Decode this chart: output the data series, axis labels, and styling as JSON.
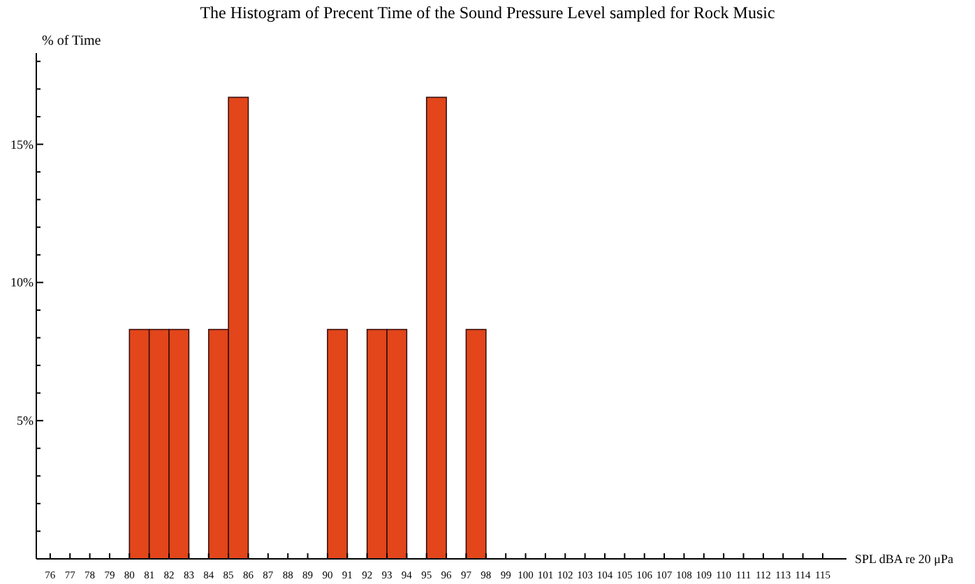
{
  "chart_data": {
    "type": "histogram",
    "title": "The Histogram of Precent Time of the Sound Pressure Level sampled for Rock Music",
    "xlabel": "SPL dBA re 20 μPa",
    "ylabel": "% of Time",
    "bins": [
      80,
      81,
      82,
      83,
      84,
      85,
      86,
      87,
      88,
      89,
      90,
      91,
      92,
      93,
      94,
      95,
      96,
      97,
      98
    ],
    "values": [
      8.3,
      8.3,
      8.3,
      0,
      8.3,
      16.7,
      0,
      0,
      0,
      0,
      8.3,
      0,
      8.3,
      8.3,
      0,
      16.7,
      0,
      8.3
    ],
    "color": "#e2461a",
    "xlim": [
      75.3,
      116.2
    ],
    "xticks": [
      76,
      77,
      78,
      79,
      80,
      81,
      82,
      83,
      84,
      85,
      86,
      87,
      88,
      89,
      90,
      91,
      92,
      93,
      94,
      95,
      96,
      97,
      98,
      99,
      100,
      101,
      102,
      103,
      104,
      105,
      106,
      107,
      108,
      109,
      110,
      111,
      112,
      113,
      114,
      115
    ],
    "ylim": [
      0,
      18.3
    ],
    "yticks": [
      {
        "value": 1,
        "label": null
      },
      {
        "value": 2,
        "label": null
      },
      {
        "value": 3,
        "label": null
      },
      {
        "value": 4,
        "label": null
      },
      {
        "value": 5,
        "label": "5%"
      },
      {
        "value": 6,
        "label": null
      },
      {
        "value": 7,
        "label": null
      },
      {
        "value": 8,
        "label": null
      },
      {
        "value": 9,
        "label": null
      },
      {
        "value": 10,
        "label": "10%"
      },
      {
        "value": 11,
        "label": null
      },
      {
        "value": 12,
        "label": null
      },
      {
        "value": 13,
        "label": null
      },
      {
        "value": 14,
        "label": null
      },
      {
        "value": 15,
        "label": "15%"
      },
      {
        "value": 16,
        "label": null
      },
      {
        "value": 17,
        "label": null
      },
      {
        "value": 18,
        "label": null
      }
    ],
    "grid": false
  }
}
